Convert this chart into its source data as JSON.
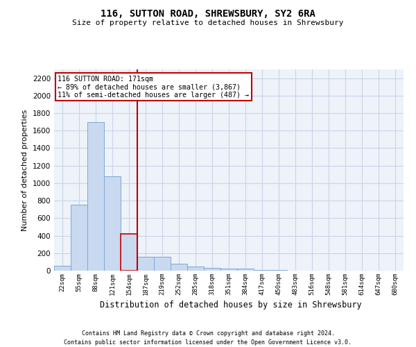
{
  "title1": "116, SUTTON ROAD, SHREWSBURY, SY2 6RA",
  "title2": "Size of property relative to detached houses in Shrewsbury",
  "xlabel": "Distribution of detached houses by size in Shrewsbury",
  "ylabel": "Number of detached properties",
  "footnote1": "Contains HM Land Registry data © Crown copyright and database right 2024.",
  "footnote2": "Contains public sector information licensed under the Open Government Licence v3.0.",
  "bin_labels": [
    "22sqm",
    "55sqm",
    "88sqm",
    "121sqm",
    "154sqm",
    "187sqm",
    "219sqm",
    "252sqm",
    "285sqm",
    "318sqm",
    "351sqm",
    "384sqm",
    "417sqm",
    "450sqm",
    "483sqm",
    "516sqm",
    "548sqm",
    "581sqm",
    "614sqm",
    "647sqm",
    "680sqm"
  ],
  "bar_values": [
    55,
    750,
    1700,
    1075,
    420,
    155,
    155,
    80,
    45,
    35,
    25,
    25,
    10,
    5,
    3,
    2,
    2,
    1,
    1,
    0,
    0
  ],
  "bar_color": "#c9d9f0",
  "bar_edge_color": "#7aa8d8",
  "highlight_bar_index": 4,
  "highlight_bar_edge_color": "#c00000",
  "vline_color": "#c00000",
  "annotation_title": "116 SUTTON ROAD: 171sqm",
  "annotation_line1": "← 89% of detached houses are smaller (3,867)",
  "annotation_line2": "11% of semi-detached houses are larger (487) →",
  "annotation_box_color": "#ffffff",
  "annotation_box_edge": "#c00000",
  "ylim": [
    0,
    2300
  ],
  "yticks": [
    0,
    200,
    400,
    600,
    800,
    1000,
    1200,
    1400,
    1600,
    1800,
    2000,
    2200
  ],
  "grid_color": "#c8d4e8",
  "background_color": "#eef2f9"
}
